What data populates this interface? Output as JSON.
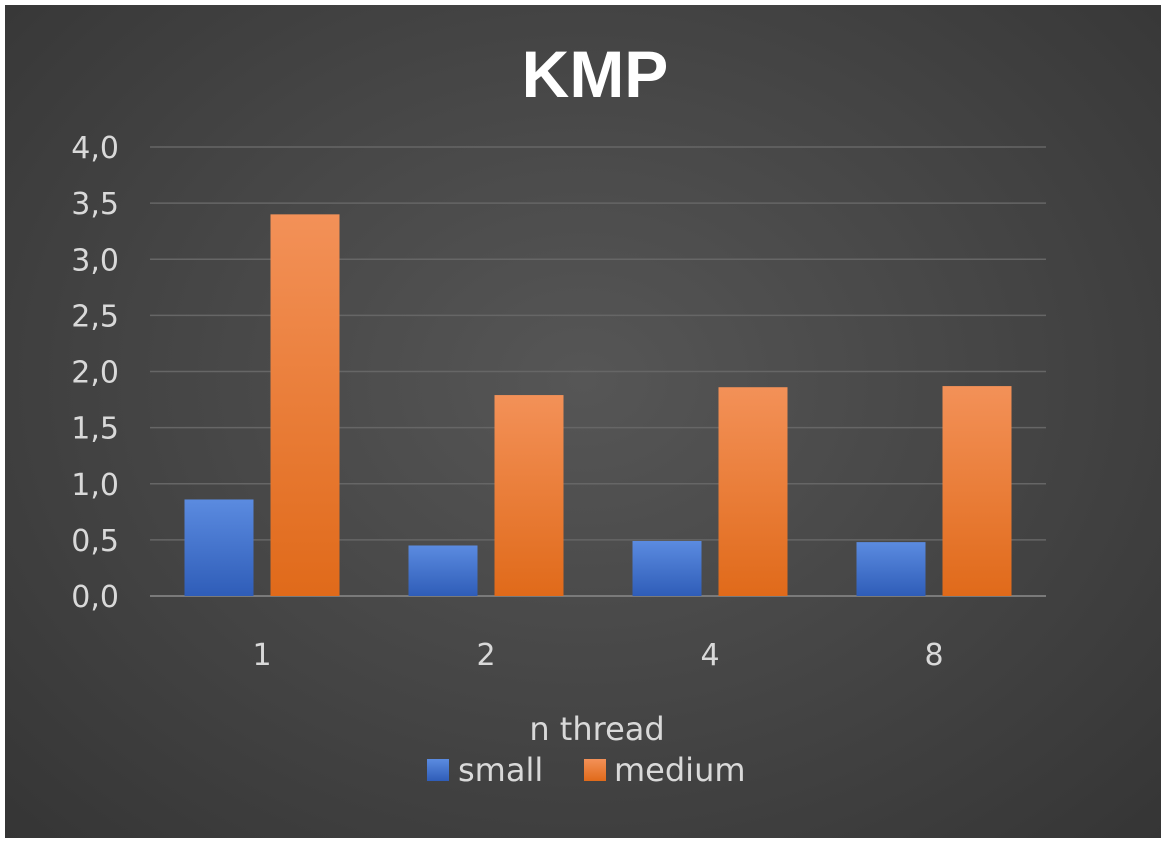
{
  "chart_data": {
    "type": "bar",
    "title": "KMP",
    "xlabel": "n thread",
    "ylabel": "",
    "categories": [
      "1",
      "2",
      "4",
      "8"
    ],
    "series": [
      {
        "name": "small",
        "values": [
          0.86,
          0.45,
          0.49,
          0.48
        ],
        "color": "#4472c4"
      },
      {
        "name": "medium",
        "values": [
          3.4,
          1.79,
          1.86,
          1.87
        ],
        "color": "#ed7d31"
      }
    ],
    "ylim": [
      0,
      4.0
    ],
    "yticks": [
      "0,0",
      "0,5",
      "1,0",
      "1,5",
      "2,0",
      "2,5",
      "3,0",
      "3,5",
      "4,0"
    ],
    "grid": true,
    "legend_position": "bottom"
  }
}
